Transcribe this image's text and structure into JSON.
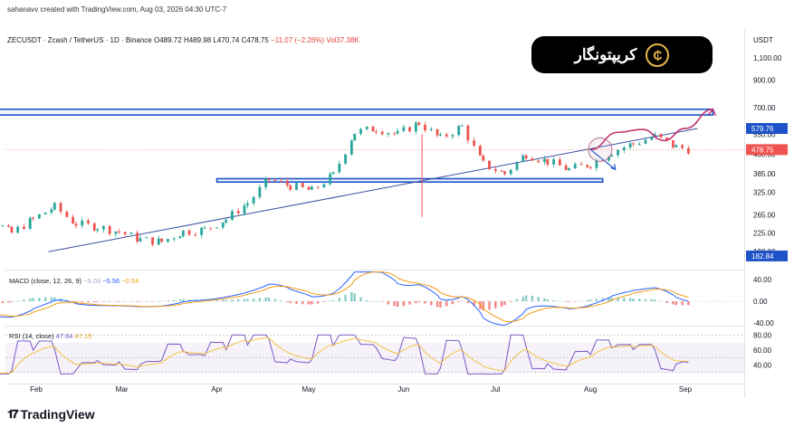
{
  "header": {
    "credit": "sahanavv created with TradingView.com, Aug 03, 2026 04:30 UTC-7",
    "symbol": "ZECUSDT · Zcash / TetherUS · 1D · Binance",
    "ohlc": {
      "o": "O489.72",
      "h": "H489.98",
      "l": "L470.74",
      "c": "C478.75",
      "change": "−11.07 (−2.26%)",
      "vol": "Vol37.38K"
    },
    "currency": "USDT"
  },
  "brand": {
    "text": "کریپتونگار",
    "logo_glyph": "₵"
  },
  "footer": {
    "logo_mark": "𝟏𝟕",
    "logo_text": "TradingView"
  },
  "colors": {
    "up": "#26a69a",
    "down": "#ef5350",
    "zone": "#1e53c8",
    "trend": "#3a4fa0",
    "projection": "#c3306f",
    "macd": "#2962ff",
    "signal": "#f39c12",
    "rsi": "#7e57c2",
    "rsi_ma": "#f5c242",
    "price_tag": "#ef5350",
    "level_tag": "#1e53c8"
  },
  "chart_data": [
    {
      "type": "candlestick",
      "name": "ZECUSDT price",
      "y_scale": "log",
      "ylim": [
        175,
        1250
      ],
      "x_months": [
        "Feb",
        "Mar",
        "Apr",
        "May",
        "Jun",
        "Jul",
        "Aug",
        "Sep"
      ],
      "y_ticks": [
        "1,100.00",
        "900.00",
        "700.00",
        "550.00",
        "460.00",
        "385.00",
        "325.00",
        "265.00",
        "225.00",
        "190.00"
      ],
      "price_tags": [
        {
          "label": "579.76",
          "value": 579.76,
          "kind": "level"
        },
        {
          "label": "478.75",
          "value": 478.75,
          "kind": "price"
        },
        {
          "label": "182.84",
          "value": 182.84,
          "kind": "level"
        }
      ],
      "zones": [
        {
          "from_date": "Jan 01",
          "to_date": "Sep 10",
          "low": 655,
          "high": 690
        },
        {
          "from_date": "Apr 01",
          "to_date": "Aug 05",
          "low": 357,
          "high": 368
        }
      ],
      "trendline": {
        "from": [
          "Feb 05",
          190
        ],
        "to": [
          "Sep 05",
          580
        ]
      },
      "closes_by_week": [
        {
          "date": "Jan 03",
          "close": 365
        },
        {
          "date": "Jan 10",
          "close": 300
        },
        {
          "date": "Jan 17",
          "close": 255
        },
        {
          "date": "Jan 24",
          "close": 225
        },
        {
          "date": "Jan 31",
          "close": 255
        },
        {
          "date": "Feb 07",
          "close": 285
        },
        {
          "date": "Feb 14",
          "close": 245
        },
        {
          "date": "Feb 21",
          "close": 238
        },
        {
          "date": "Feb 28",
          "close": 228
        },
        {
          "date": "Mar 07",
          "close": 212
        },
        {
          "date": "Mar 14",
          "close": 208
        },
        {
          "date": "Mar 21",
          "close": 228
        },
        {
          "date": "Mar 28",
          "close": 232
        },
        {
          "date": "Apr 04",
          "close": 255
        },
        {
          "date": "Apr 11",
          "close": 295
        },
        {
          "date": "Apr 18",
          "close": 365
        },
        {
          "date": "Apr 25",
          "close": 345
        },
        {
          "date": "May 02",
          "close": 330
        },
        {
          "date": "May 09",
          "close": 380
        },
        {
          "date": "May 16",
          "close": 560
        },
        {
          "date": "May 23",
          "close": 580
        },
        {
          "date": "May 30",
          "close": 550
        },
        {
          "date": "Jun 06",
          "close": 610
        },
        {
          "date": "Jun 13",
          "close": 530
        },
        {
          "date": "Jun 20",
          "close": 590
        },
        {
          "date": "Jun 27",
          "close": 420
        },
        {
          "date": "Jul 04",
          "close": 385
        },
        {
          "date": "Jul 11",
          "close": 460
        },
        {
          "date": "Jul 18",
          "close": 430
        },
        {
          "date": "Jul 25",
          "close": 400
        },
        {
          "date": "Aug 01",
          "close": 420
        },
        {
          "date": "Aug 08",
          "close": 470
        },
        {
          "date": "Aug 15",
          "close": 505
        },
        {
          "date": "Aug 22",
          "close": 540
        },
        {
          "date": "Aug 29",
          "close": 490
        },
        {
          "date": "Sep 03",
          "close": 478.75
        }
      ],
      "projection": [
        [
          "Aug 01",
          479
        ],
        [
          "Aug 10",
          560
        ],
        [
          "Aug 18",
          575
        ],
        [
          "Aug 25",
          520
        ],
        [
          "Sep 01",
          580
        ],
        [
          "Sep 10",
          690
        ]
      ],
      "projection_alt": [
        [
          "Aug 01",
          479
        ],
        [
          "Aug 05",
          400
        ]
      ]
    },
    {
      "type": "macd",
      "label": "MACD (close, 12, 26, 9)",
      "values_label": {
        "hist": "−5.03",
        "macd": "−5.56",
        "signal": "−0.54"
      },
      "y_ticks": [
        "40.00",
        "0.00",
        "-40.00"
      ],
      "ylim": [
        -45,
        55
      ]
    },
    {
      "type": "rsi",
      "label": "RSI (14, close)",
      "values_label": {
        "rsi": "47.64",
        "ma": "47.15"
      },
      "y_ticks": [
        "80.00",
        "60.00",
        "40.00"
      ],
      "ylim": [
        20,
        90
      ],
      "band": [
        30,
        70
      ]
    }
  ]
}
